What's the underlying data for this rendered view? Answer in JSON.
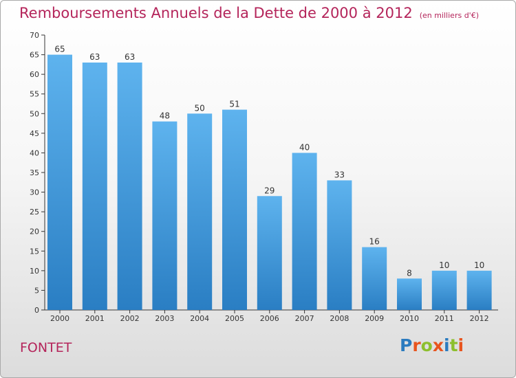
{
  "title": "Remboursements Annuels de la Dette de 2000 à 2012",
  "subtitle": "(en milliers d'€)",
  "commune": "FONTET",
  "logo": {
    "letters": [
      "P",
      "r",
      "o",
      "x",
      "i",
      "t",
      "i"
    ],
    "colors": [
      "#2b7bbf",
      "#e8541e",
      "#8dbf2e",
      "#e8541e",
      "#2b7bbf",
      "#8dbf2e",
      "#e8541e"
    ]
  },
  "colors": {
    "bar_light": "#5eb3ee",
    "bar_dark": "#2a7ec3",
    "title": "#b4245a"
  },
  "chart_data": {
    "type": "bar",
    "title": "Remboursements Annuels de la Dette de 2000 à 2012",
    "subtitle": "(en milliers d'€)",
    "categories": [
      "2000",
      "2001",
      "2002",
      "2003",
      "2004",
      "2005",
      "2006",
      "2007",
      "2008",
      "2009",
      "2010",
      "2011",
      "2012"
    ],
    "values": [
      65,
      63,
      63,
      48,
      50,
      51,
      29,
      40,
      33,
      16,
      8,
      10,
      10
    ],
    "ylim": [
      0,
      70
    ],
    "yticks": [
      0,
      5,
      10,
      15,
      20,
      25,
      30,
      35,
      40,
      45,
      50,
      55,
      60,
      65,
      70
    ],
    "grid": false,
    "data_labels": true
  }
}
